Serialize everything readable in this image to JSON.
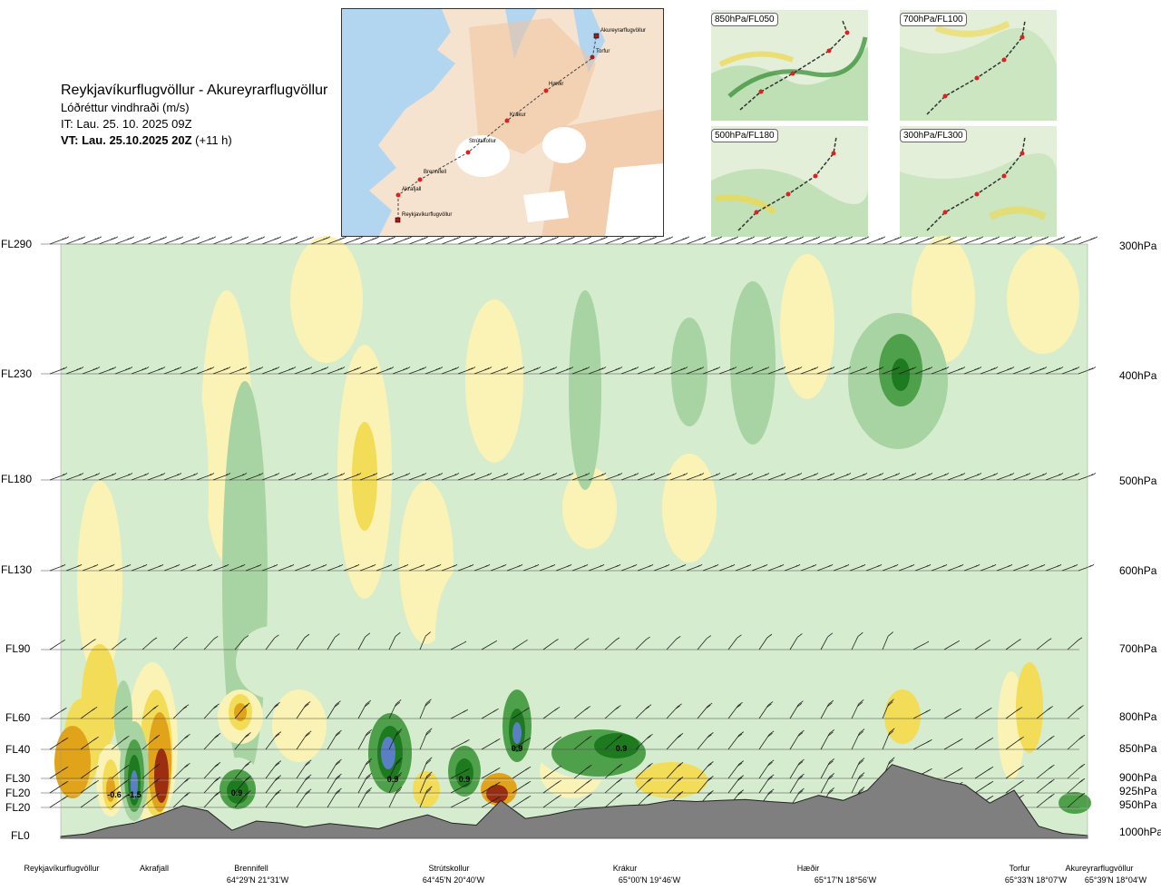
{
  "header": {
    "title": "Reykjavíkurflugvöllur - Akureyrarflugvöllur",
    "subtitle": "Lóðréttur vindhraði (m/s)",
    "it": "IT: Lau. 25. 10. 2025 09Z",
    "vt": "VT: Lau. 25.10.2025 20Z",
    "vt_offset": "(+11 h)"
  },
  "map": {
    "waypoints": [
      "Akureyrarflugvöllur",
      "Torfur",
      "Hæðir",
      "Krákur",
      "Strútskollur",
      "Brennifell",
      "Akrafjall",
      "Reykjavíkurflugvöllur"
    ]
  },
  "thumbnails": [
    {
      "label": "850hPa/FL050"
    },
    {
      "label": "700hPa/FL100"
    },
    {
      "label": "500hPa/FL180"
    },
    {
      "label": "300hPa/FL300"
    }
  ],
  "colors": {
    "terrain": "#7f7f7f",
    "pos_light": "#fbf3b5",
    "pos_mid": "#f3dc57",
    "pos_strong": "#e0a31a",
    "pos_max": "#9b2d10",
    "neg_light": "#d5ecce",
    "neg_mid": "#a8d3a2",
    "neg_strong": "#4fa04a",
    "neg_max": "#1d7a1f",
    "neg_extreme": "#5a7fc5"
  },
  "chart_data": {
    "type": "heatmap",
    "title": "Lóðréttur vindhraði (m/s)",
    "left_axis_labels": [
      "FL290",
      "FL230",
      "FL180",
      "FL130",
      "FL90",
      "FL60",
      "FL40",
      "FL30",
      "FL20",
      "FL20",
      "FL0"
    ],
    "right_axis_labels": [
      "300hPa",
      "400hPa",
      "500hPa",
      "600hPa",
      "700hPa",
      "800hPa",
      "850hPa",
      "900hPa",
      "925hPa",
      "950hPa",
      "1000hPa"
    ],
    "x_stations": [
      {
        "name": "Reykjavíkurflugvöllur",
        "coord": ""
      },
      {
        "name": "Akrafjall",
        "coord": ""
      },
      {
        "name": "Brennifell",
        "coord": "64°29'N 21°31'W"
      },
      {
        "name": "Strútskollur",
        "coord": "64°45'N 20°40'W"
      },
      {
        "name": "Krákur",
        "coord": "65°00'N 19°46'W"
      },
      {
        "name": "Hæðir",
        "coord": "65°17'N 18°56'W"
      },
      {
        "name": "Torfur",
        "coord": "65°33'N 18°07'W"
      },
      {
        "name": "Akureyrarflugvöllur",
        "coord": "65°39'N 18°04'W"
      }
    ],
    "value_labels": [
      "-0.6",
      "-1.5",
      "0.9",
      "0.9",
      "0.9",
      "0.9",
      "0.9"
    ],
    "terrain_profile_m": [
      0,
      50,
      180,
      260,
      420,
      600,
      500,
      120,
      300,
      260,
      180,
      250,
      200,
      150,
      300,
      420,
      260,
      220,
      700,
      350,
      420,
      520,
      560,
      600,
      620,
      700,
      680,
      700,
      720,
      680,
      650,
      800,
      700,
      900,
      1400,
      1250,
      1100,
      1000,
      650,
      900,
      200,
      60,
      20
    ]
  }
}
